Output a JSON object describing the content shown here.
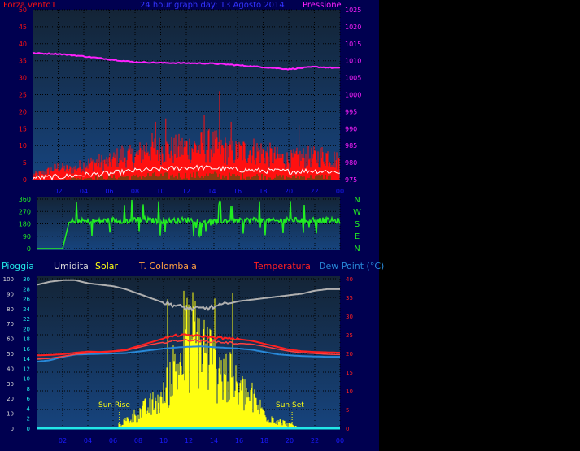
{
  "colors": {
    "background": "#000050",
    "plot_top": "#10304a",
    "plot_bottom": "#1a3c78",
    "grid": "#000000",
    "wind": "#ff1010",
    "gust_white": "#ffffff",
    "wind_green": "#116611",
    "pressure": "#ff20ff",
    "direction": "#22ee22",
    "rain": "#22e8e8",
    "humidity": "#b0b0b0",
    "solar": "#ffff10",
    "temperature": "#ff2020",
    "dew_point": "#2888d8",
    "ticks_time": "#1a1aff",
    "title_color": "#3333ff"
  },
  "chart_data": [
    {
      "type": "line",
      "title": "24 hour graph day:  13 Agosto 2014",
      "left_axis_label": "Forza vento1",
      "right_axis_label": "Pressione",
      "x_ticks": [
        "02",
        "04",
        "06",
        "08",
        "10",
        "12",
        "14",
        "16",
        "18",
        "20",
        "22",
        "00"
      ],
      "y_left": {
        "min": 0,
        "max": 50,
        "ticks": [
          "0",
          "5",
          "10",
          "15",
          "20",
          "25",
          "30",
          "35",
          "40",
          "45",
          "50"
        ]
      },
      "y_right": {
        "min": 975,
        "max": 1025,
        "ticks": [
          "975",
          "980",
          "985",
          "990",
          "995",
          "1000",
          "1005",
          "1010",
          "1015",
          "1020",
          "1025"
        ]
      },
      "series": [
        {
          "key": "pressure",
          "axis": "right",
          "x": [
            0,
            2,
            4,
            6,
            8,
            10,
            12,
            14,
            16,
            18,
            20,
            22,
            24
          ],
          "y": [
            1012.2,
            1012,
            1011.3,
            1010.4,
            1009.6,
            1009.4,
            1009.3,
            1009.2,
            1008.7,
            1008.1,
            1007.5,
            1008.2,
            1007.8
          ]
        },
        {
          "key": "wind_envelope",
          "axis": "left",
          "x": [
            0,
            1,
            2,
            3,
            4,
            5,
            6,
            7,
            8,
            9,
            10,
            11,
            12,
            13,
            14,
            15,
            16,
            17,
            18,
            19,
            20,
            21,
            22,
            23,
            24
          ],
          "y": [
            2,
            3,
            5,
            4,
            6,
            7,
            7,
            10,
            9,
            13,
            12,
            12,
            13,
            13,
            14,
            12,
            11,
            12,
            11,
            9,
            8,
            9,
            9,
            10,
            7
          ]
        },
        {
          "key": "gust_white",
          "axis": "left",
          "x": [
            0,
            2,
            4,
            6,
            8,
            10,
            12,
            14,
            16,
            18,
            20,
            22,
            24
          ],
          "y": [
            0.5,
            0.8,
            1.4,
            1.8,
            2.6,
            3.0,
            3.6,
            3.4,
            2.9,
            2.6,
            2.4,
            2.6,
            2.2
          ]
        }
      ]
    },
    {
      "type": "line",
      "left_ticks": [
        "0",
        "90",
        "180",
        "270",
        "360"
      ],
      "y_left": {
        "min": 0,
        "max": 360
      },
      "right_labels": [
        "N",
        "W",
        "S",
        "E",
        "N"
      ],
      "x_ticks": [
        "02",
        "04",
        "06",
        "08",
        "10",
        "12",
        "14",
        "16",
        "18",
        "20",
        "22",
        "00"
      ],
      "series": [
        {
          "key": "direction",
          "x": [
            0,
            1.5,
            2.0,
            2.5,
            3,
            4,
            5,
            6,
            7,
            8,
            9,
            10,
            11,
            12,
            13,
            14,
            15,
            16,
            17,
            18,
            19,
            20,
            21,
            22,
            23,
            24
          ],
          "y": [
            0,
            0,
            0,
            190,
            205,
            195,
            200,
            210,
            200,
            215,
            205,
            200,
            205,
            210,
            200,
            195,
            205,
            200,
            210,
            205,
            200,
            210,
            205,
            210,
            205,
            200
          ]
        }
      ]
    },
    {
      "type": "line",
      "legend": [
        {
          "label": "Pioggia",
          "key": "rain"
        },
        {
          "label": "Umidita",
          "key": "humidity"
        },
        {
          "label": "Solar",
          "key": "solar"
        },
        {
          "label": "T. Colombaia",
          "key": "temp_colombaia"
        },
        {
          "label": "Temperatura",
          "key": "temperature"
        },
        {
          "label": "Dew Point (°C)",
          "key": "dew_point"
        }
      ],
      "axis_humidity_ticks": [
        "0",
        "10",
        "20",
        "30",
        "40",
        "50",
        "60",
        "70",
        "80",
        "90",
        "100"
      ],
      "axis_rain_ticks": [
        "0",
        "2",
        "4",
        "6",
        "8",
        "10",
        "12",
        "14",
        "16",
        "18",
        "20",
        "22",
        "24",
        "26",
        "28",
        "30"
      ],
      "axis_temp_ticks": [
        "0",
        "5",
        "10",
        "15",
        "20",
        "25",
        "30",
        "35",
        "40"
      ],
      "x_ticks": [
        "02",
        "04",
        "06",
        "08",
        "10",
        "12",
        "14",
        "16",
        "18",
        "20",
        "22",
        "00"
      ],
      "annotations": [
        {
          "label": "Sun Rise",
          "x": 6.5
        },
        {
          "label": "Sun Set",
          "x": 20.2
        }
      ],
      "series": [
        {
          "key": "humidity",
          "scale": "humidity",
          "x": [
            0,
            1,
            2,
            3,
            4,
            5,
            6,
            7,
            8,
            9,
            10,
            11,
            12,
            13,
            14,
            15,
            16,
            17,
            18,
            19,
            20,
            21,
            22,
            23,
            24
          ],
          "y": [
            96,
            98,
            99,
            99,
            97,
            96,
            95,
            93,
            90,
            87,
            84,
            82,
            80,
            80,
            81,
            83,
            85,
            86,
            87,
            88,
            89,
            90,
            92,
            93,
            93
          ]
        },
        {
          "key": "temperature",
          "scale": "temp",
          "x": [
            0,
            1,
            2,
            3,
            4,
            5,
            6,
            7,
            8,
            9,
            10,
            11,
            12,
            13,
            14,
            15,
            16,
            17,
            18,
            19,
            20,
            21,
            22,
            23,
            24
          ],
          "y": [
            19.5,
            19.6,
            19.8,
            20.2,
            20.5,
            20.4,
            20.6,
            21,
            22,
            23,
            24,
            24.8,
            24.9,
            24.6,
            24.3,
            24,
            23.8,
            23.4,
            22.6,
            21.8,
            21,
            20.6,
            20.4,
            20.3,
            20.2
          ]
        },
        {
          "key": "temp_colombaia",
          "scale": "temp",
          "x": [
            0,
            1,
            2,
            3,
            4,
            5,
            6,
            7,
            8,
            9,
            10,
            11,
            12,
            13,
            14,
            15,
            16,
            17,
            18,
            19,
            20,
            21,
            22,
            23,
            24
          ],
          "y": [
            18.5,
            18.7,
            19.2,
            19.8,
            20.1,
            20.3,
            20.5,
            20.8,
            21.6,
            22.4,
            23.0,
            23.4,
            23.6,
            23.3,
            23.2,
            22.9,
            22.7,
            22.5,
            21.9,
            21.2,
            20.6,
            20.2,
            20.0,
            19.8,
            19.7
          ]
        },
        {
          "key": "dew_point",
          "scale": "temp",
          "x": [
            0,
            1,
            2,
            3,
            4,
            5,
            6,
            7,
            8,
            9,
            10,
            11,
            12,
            13,
            14,
            15,
            16,
            17,
            18,
            19,
            20,
            21,
            22,
            23,
            24
          ],
          "y": [
            17.8,
            18.2,
            19.1,
            19.7,
            19.8,
            19.9,
            20.0,
            20.1,
            20.5,
            20.9,
            21.3,
            21.6,
            21.8,
            21.9,
            21.7,
            21.5,
            21.3,
            21.0,
            20.4,
            19.8,
            19.5,
            19.3,
            19.2,
            19.1,
            19.1
          ]
        },
        {
          "key": "solar",
          "scale": "rain",
          "x": [
            0,
            6.2,
            6.5,
            7,
            8,
            9,
            10,
            10.5,
            11,
            11.5,
            12,
            12.5,
            13,
            13.5,
            14,
            14.5,
            15,
            15.5,
            16,
            17,
            18,
            19,
            20,
            21,
            24
          ],
          "y": [
            0,
            0,
            1,
            2,
            4,
            6,
            8,
            14,
            16,
            19,
            22,
            24,
            22,
            20,
            16,
            15,
            14,
            12,
            10,
            8,
            4,
            2,
            1,
            0,
            0
          ]
        },
        {
          "key": "rain",
          "scale": "rain",
          "x": [
            0,
            24
          ],
          "y": [
            0,
            0
          ]
        }
      ]
    }
  ]
}
